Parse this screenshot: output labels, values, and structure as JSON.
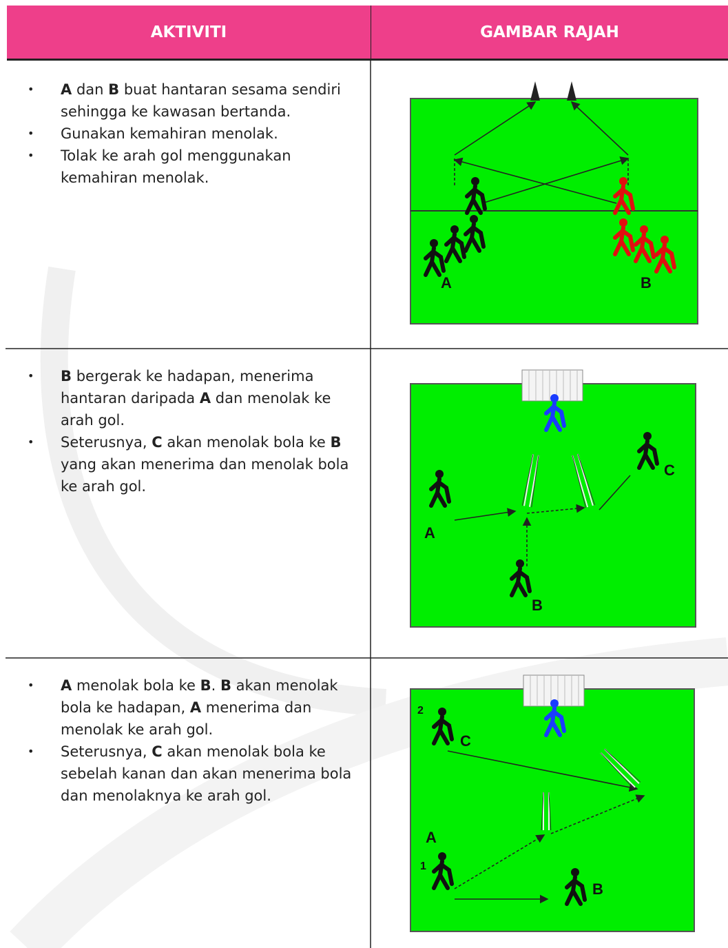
{
  "header": {
    "left": "AKTIVITI",
    "right": "GAMBAR RAJAH"
  },
  "rows": [
    {
      "bullets": [
        [
          {
            "bold": "A"
          },
          " dan ",
          {
            "bold": "B"
          },
          " buat hantaran sesama sendiri sehingga ke kawasan bertanda."
        ],
        [
          "Gunakan kemahiran menolak."
        ],
        [
          "Tolak ke arah gol menggunakan kemahiran menolak."
        ]
      ],
      "diagram_labels": [
        "A",
        "B"
      ]
    },
    {
      "bullets": [
        [
          {
            "bold": "B"
          },
          " bergerak ke hadapan, menerima hantaran daripada ",
          {
            "bold": "A"
          },
          " dan menolak ke arah gol."
        ],
        [
          "Seterusnya, ",
          {
            "bold": "C"
          },
          " akan menolak bola ke ",
          {
            "bold": "B"
          },
          " yang akan menerima dan menolak bola ke arah gol."
        ]
      ],
      "diagram_labels": [
        "A",
        "B",
        "C"
      ]
    },
    {
      "bullets": [
        [
          {
            "bold": "A"
          },
          " menolak bola ke ",
          {
            "bold": "B"
          },
          ".  ",
          {
            "bold": "B"
          },
          " akan menolak bola ke hadapan, ",
          {
            "bold": "A"
          },
          " menerima dan menolak ke arah gol."
        ],
        [
          "Seterusnya, ",
          {
            "bold": "C"
          },
          " akan menolak bola ke sebelah kanan dan  akan menerima bola dan menolaknya ke arah gol."
        ]
      ],
      "diagram_labels": [
        "2",
        "C",
        "A",
        "1",
        "B"
      ]
    }
  ]
}
